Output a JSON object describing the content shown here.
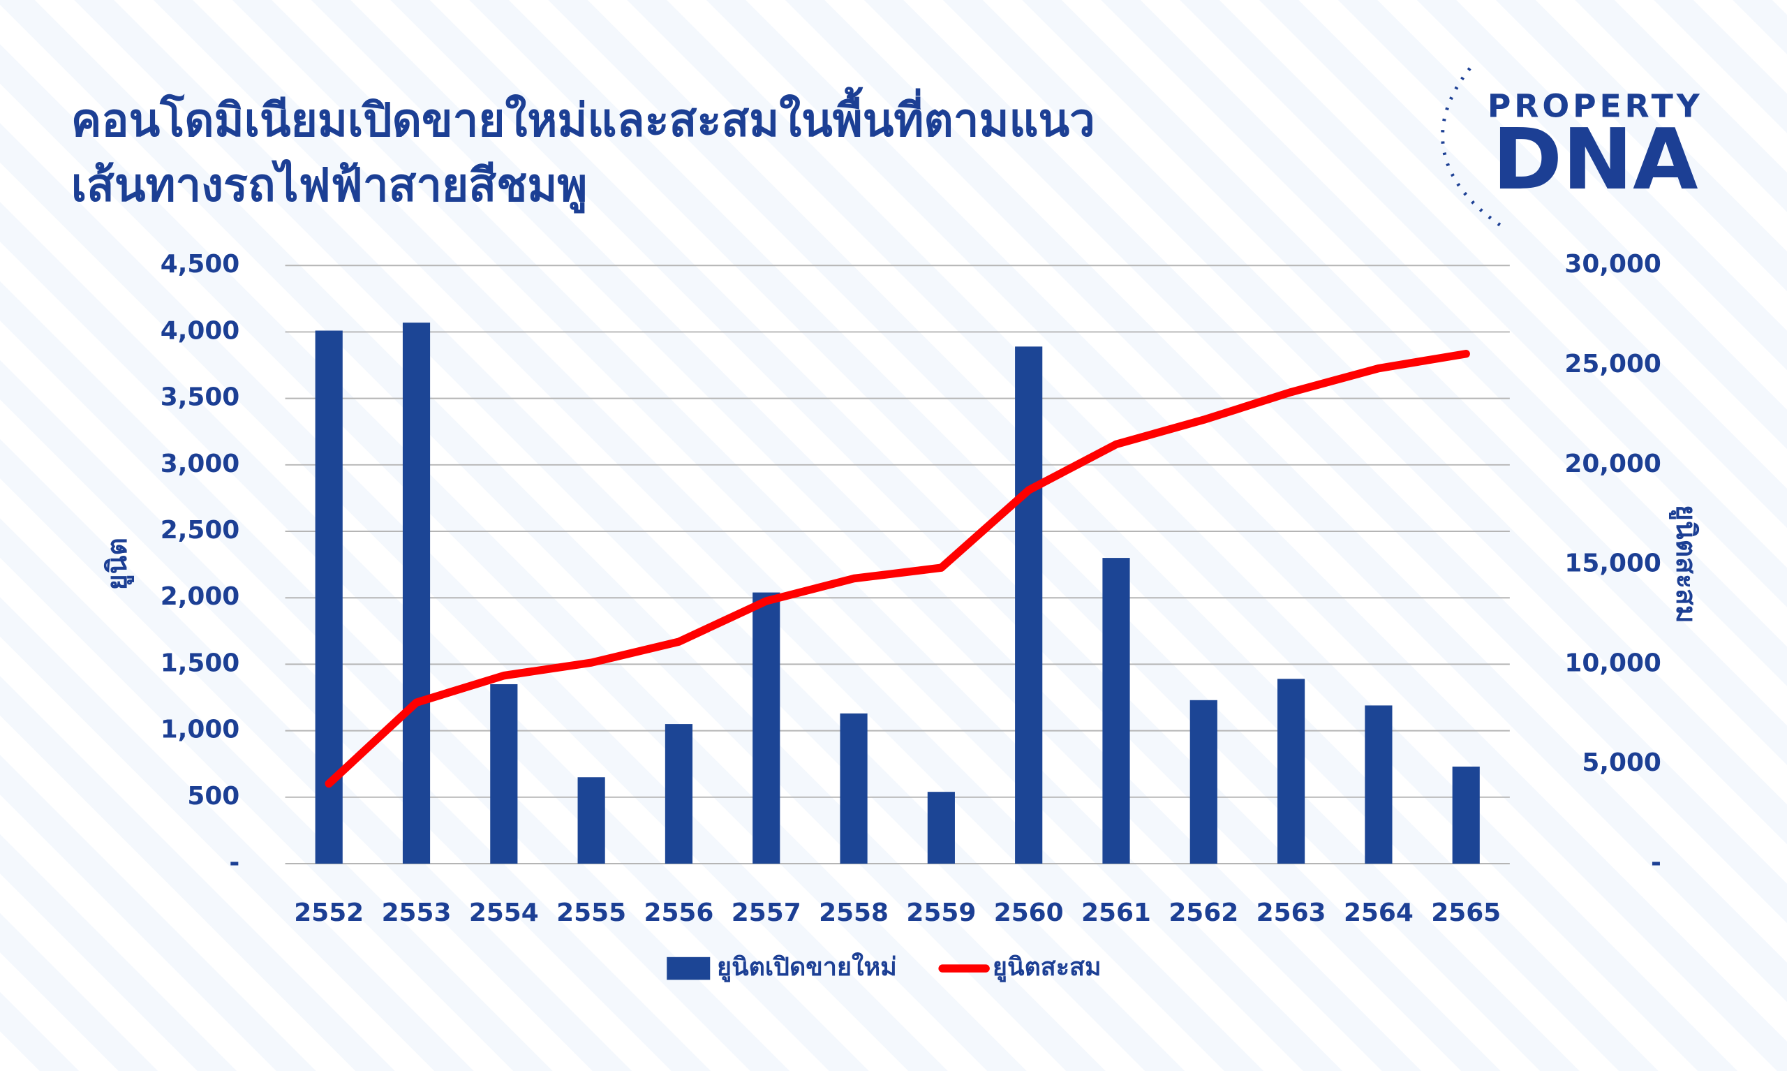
{
  "chart_data": {
    "type": "bar",
    "title": [
      "คอนโดมิเนียมเปิดขายใหม่และสะสมในพื้นที่ตามแนว",
      "เส้นทางรถไฟฟ้าสายสีชมพู"
    ],
    "logo": {
      "top": "PROPERTY",
      "bottom": "DNA"
    },
    "ylabel": "ยูนิต",
    "y2label": "ยูนิตสะสม",
    "categories": [
      "2552",
      "2553",
      "2554",
      "2555",
      "2556",
      "2557",
      "2558",
      "2559",
      "2560",
      "2561",
      "2562",
      "2563",
      "2564",
      "2565"
    ],
    "series": [
      {
        "name": "ยูนิตเปิดขายใหม่",
        "type": "bar",
        "color": "#1c4595",
        "values": [
          4010,
          4070,
          1350,
          650,
          1050,
          2040,
          1130,
          540,
          3890,
          2300,
          1230,
          1390,
          1190,
          730
        ]
      },
      {
        "name": "ยูนิตสะสม",
        "type": "line",
        "axis": "y2",
        "color": "#ff0000",
        "values": [
          4010,
          8080,
          9430,
          10080,
          11130,
          13170,
          14300,
          14840,
          18730,
          21030,
          22260,
          23650,
          24840,
          25570
        ]
      }
    ],
    "ylim": [
      0,
      4500
    ],
    "yticks": [
      {
        "value": 0,
        "label": "-"
      },
      500,
      {
        "value": 1000,
        "label": "1,000"
      },
      {
        "value": 1500,
        "label": "1,500"
      },
      {
        "value": 2000,
        "label": "2,000"
      },
      {
        "value": 2500,
        "label": "2,500"
      },
      {
        "value": 3000,
        "label": "3,000"
      },
      {
        "value": 3500,
        "label": "3,500"
      },
      {
        "value": 4000,
        "label": "4,000"
      },
      {
        "value": 4500,
        "label": "4,500"
      }
    ],
    "y2lim": [
      0,
      30000
    ],
    "y2ticks": [
      {
        "value": 0,
        "label": "-"
      },
      {
        "value": 5000,
        "label": "5,000"
      },
      {
        "value": 10000,
        "label": "10,000"
      },
      {
        "value": 15000,
        "label": "15,000"
      },
      {
        "value": 20000,
        "label": "20,000"
      },
      {
        "value": 25000,
        "label": "25,000"
      },
      {
        "value": 30000,
        "label": "30,000"
      }
    ],
    "grid": true,
    "legend": "bottom"
  }
}
